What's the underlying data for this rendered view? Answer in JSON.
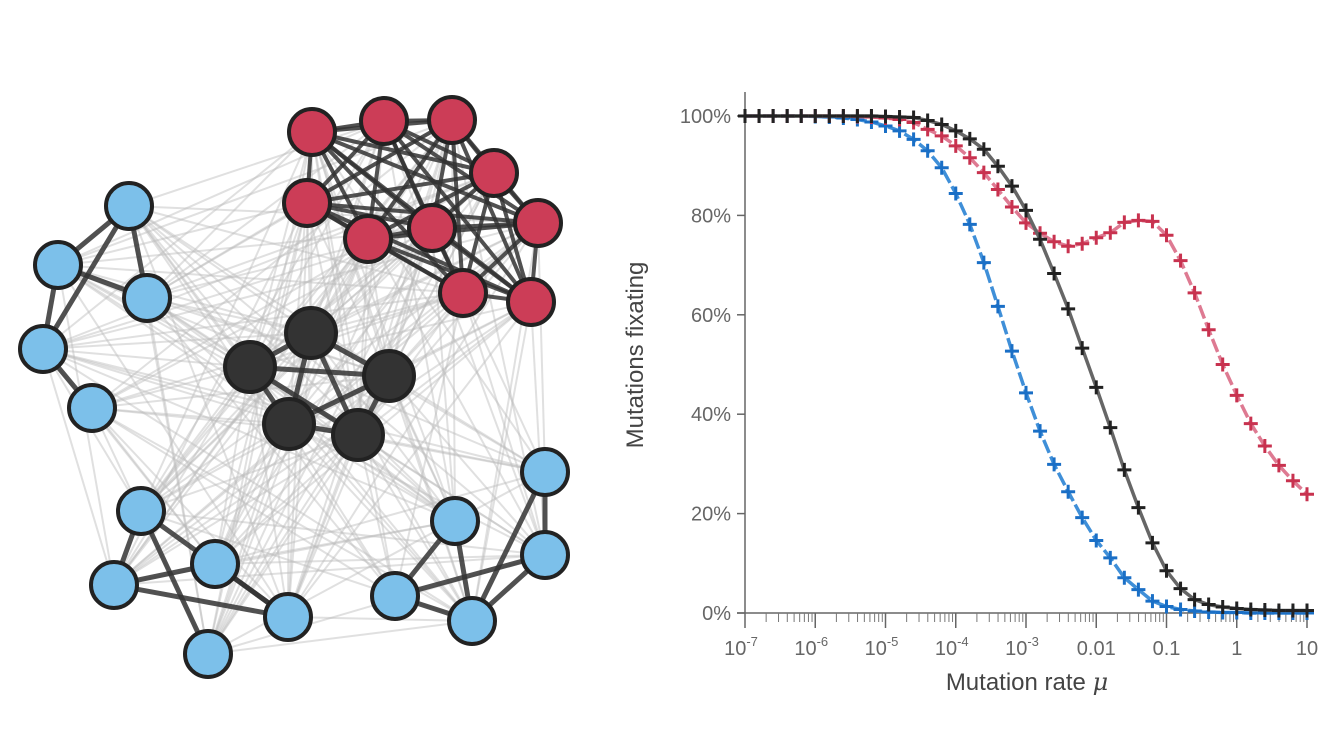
{
  "network": {
    "colors": {
      "red_cluster": "#cc3d57",
      "hub_cluster": "#333333",
      "blue_cluster": "#7cc0ea",
      "node_outline": "#222222",
      "intra_edge": "#333333",
      "inter_edge": "#bbbbbb"
    }
  },
  "chart_data": {
    "type": "line",
    "xlabel": "Mutation rate ",
    "xlabel_symbol": "μ",
    "ylabel": "Mutations fixating",
    "xscale": "log",
    "xlim": [
      1e-07,
      10
    ],
    "ylim": [
      0,
      100
    ],
    "grid": false,
    "legend": "none",
    "x_ticks": [
      {
        "base": "10",
        "exp": "-7",
        "value": 1e-07
      },
      {
        "base": "10",
        "exp": "-6",
        "value": 1e-06
      },
      {
        "base": "10",
        "exp": "-5",
        "value": 1e-05
      },
      {
        "base": "10",
        "exp": "-4",
        "value": 0.0001
      },
      {
        "base": "10",
        "exp": "-3",
        "value": 0.001
      },
      {
        "base": "0.01",
        "exp": "",
        "value": 0.01
      },
      {
        "base": "0.1",
        "exp": "",
        "value": 0.1
      },
      {
        "base": "1",
        "exp": "",
        "value": 1
      },
      {
        "base": "10",
        "exp": "",
        "value": 10
      }
    ],
    "y_ticks": [
      {
        "label": "0%",
        "value": 0
      },
      {
        "label": "20%",
        "value": 20
      },
      {
        "label": "40%",
        "value": 40
      },
      {
        "label": "60%",
        "value": 60
      },
      {
        "label": "80%",
        "value": 80
      },
      {
        "label": "100%",
        "value": 100
      }
    ],
    "log10_x": [
      -7,
      -6.8,
      -6.6,
      -6.4,
      -6.2,
      -6,
      -5.8,
      -5.6,
      -5.4,
      -5.2,
      -5,
      -4.8,
      -4.6,
      -4.4,
      -4.2,
      -4,
      -3.8,
      -3.6,
      -3.4,
      -3.2,
      -3,
      -2.8,
      -2.6,
      -2.4,
      -2.2,
      -2,
      -1.8,
      -1.6,
      -1.4,
      -1.2,
      -1,
      -0.8,
      -0.6,
      -0.4,
      -0.2,
      0,
      0.2,
      0.4,
      0.6,
      0.8,
      1
    ],
    "series": [
      {
        "color": "#1a6fc6",
        "line_color": "#3f8fd8",
        "style": "dashed",
        "values": [
          100,
          100,
          100,
          100,
          100,
          99.9,
          99.8,
          99.6,
          99.3,
          98.8,
          98.0,
          97.0,
          95.3,
          93.0,
          89.6,
          84.4,
          78.2,
          70.5,
          61.7,
          52.7,
          44.3,
          36.6,
          29.9,
          24.4,
          19.2,
          14.6,
          11.1,
          7.1,
          4.7,
          2.4,
          1.3,
          0.7,
          0.4,
          0.2,
          0.1,
          0.1,
          0,
          0,
          0,
          0,
          0
        ]
      },
      {
        "color": "#c8324f",
        "line_color": "#de7a92",
        "style": "dashed",
        "values": [
          100,
          100,
          100,
          100,
          100,
          100,
          100,
          100,
          99.9,
          99.8,
          99.6,
          99.3,
          98.7,
          97.3,
          96.0,
          94.0,
          91.6,
          88.6,
          85.2,
          81.7,
          78.5,
          76.4,
          74.7,
          73.8,
          74.3,
          75.5,
          76.5,
          78.6,
          79.0,
          78.8,
          76.0,
          70.9,
          64.4,
          57.0,
          50.0,
          43.8,
          38.1,
          33.6,
          29.7,
          26.6,
          23.9
        ]
      },
      {
        "color": "#222222",
        "line_color": "#666666",
        "style": "solid",
        "values": [
          100,
          100,
          100,
          100,
          100,
          100,
          100,
          100,
          100,
          100,
          99.9,
          99.8,
          99.7,
          99.1,
          98.3,
          97.0,
          95.4,
          93.3,
          89.9,
          85.9,
          81.0,
          75.2,
          68.3,
          61.2,
          53.3,
          45.4,
          37.3,
          28.8,
          21.2,
          14.1,
          8.5,
          4.9,
          2.7,
          1.7,
          1.2,
          0.9,
          0.7,
          0.6,
          0.5,
          0.5,
          0.5
        ]
      }
    ]
  }
}
